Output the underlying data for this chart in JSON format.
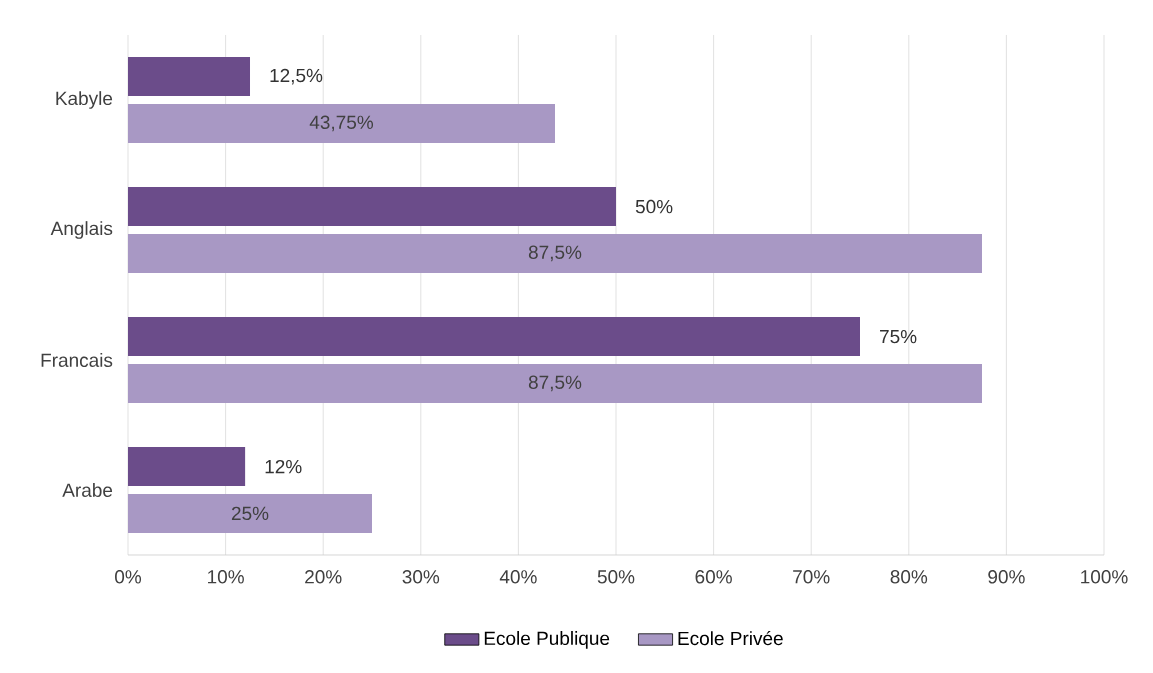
{
  "chart_data": {
    "type": "bar",
    "orientation": "horizontal",
    "categories": [
      "Kabyle",
      "Anglais",
      "Francais",
      "Arabe"
    ],
    "series": [
      {
        "name": "Ecole Publique",
        "color": "#6b4c8a",
        "values": [
          12.5,
          50,
          75,
          12
        ],
        "value_labels": [
          "12,5%",
          "50%",
          "75%",
          "12%"
        ]
      },
      {
        "name": "Ecole Privée",
        "color": "#a898c4",
        "values": [
          43.75,
          87.5,
          87.5,
          25
        ],
        "value_labels": [
          "43,75%",
          "87,5%",
          "87,5%",
          "25%"
        ]
      }
    ],
    "xlim": [
      0,
      100
    ],
    "xticks": [
      {
        "value": 0,
        "label": "0%"
      },
      {
        "value": 10,
        "label": "10%"
      },
      {
        "value": 20,
        "label": "20%"
      },
      {
        "value": 30,
        "label": "30%"
      },
      {
        "value": 40,
        "label": "40%"
      },
      {
        "value": 50,
        "label": "50%"
      },
      {
        "value": 60,
        "label": "60%"
      },
      {
        "value": 70,
        "label": "70%"
      },
      {
        "value": 80,
        "label": "80%"
      },
      {
        "value": 90,
        "label": "90%"
      },
      {
        "value": 100,
        "label": "100%"
      }
    ],
    "grid": "x",
    "legend": "bottom"
  }
}
